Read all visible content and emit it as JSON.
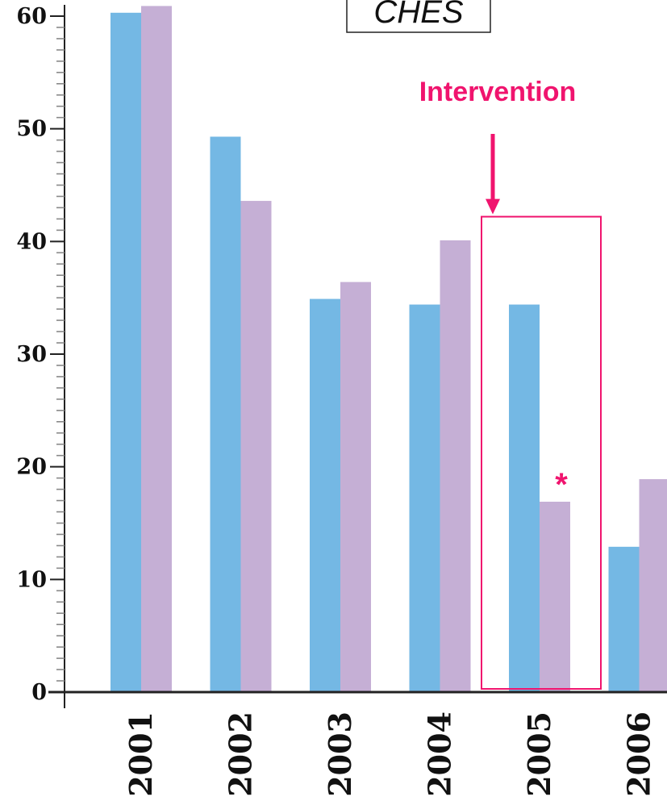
{
  "chart_data": {
    "type": "bar",
    "title": "CHES",
    "categories": [
      "2001",
      "2002",
      "2003",
      "2004",
      "2005",
      "2006"
    ],
    "series": [
      {
        "values": [
          60.3,
          49.3,
          34.9,
          34.4,
          34.4,
          12.9
        ],
        "color": "#74b8e4"
      },
      {
        "values": [
          60.9,
          43.6,
          36.4,
          40.1,
          16.9,
          18.9
        ],
        "color": "#c5afd5"
      }
    ],
    "ylim": [
      0,
      61
    ],
    "yticks": [
      "0",
      "10",
      "20",
      "30",
      "40",
      "50",
      "60"
    ],
    "grid": false,
    "annotations": {
      "intervention_label": "Intervention",
      "intervention_color": "#f0146e",
      "highlight_category": "2005",
      "significance_marker": "*"
    }
  }
}
